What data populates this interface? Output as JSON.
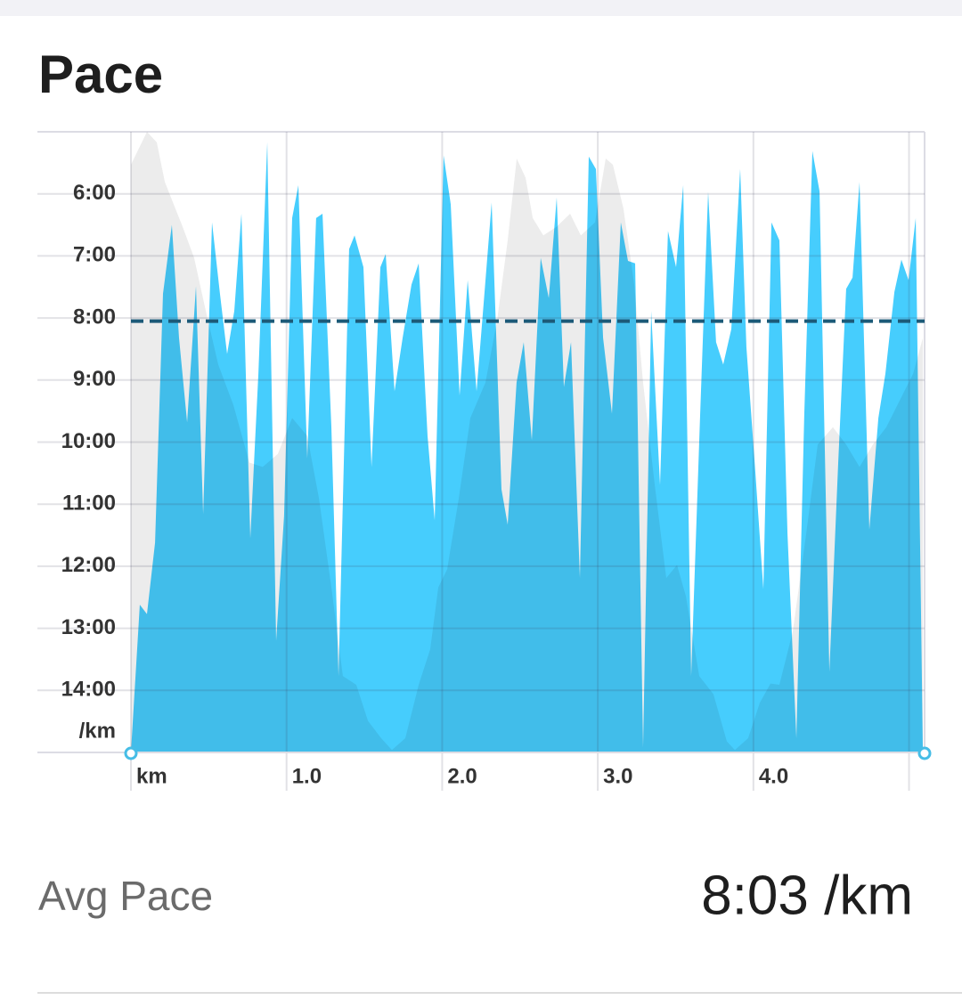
{
  "chart_data": {
    "type": "area",
    "title": "Pace",
    "y_label": "/km",
    "xlim": [
      0,
      5.1
    ],
    "xticks": [
      {
        "value": 0,
        "label": "km"
      },
      {
        "value": 1,
        "label": "1.0"
      },
      {
        "value": 2,
        "label": "2.0"
      },
      {
        "value": 3,
        "label": "3.0"
      },
      {
        "value": 4,
        "label": "4.0"
      },
      {
        "value": 5,
        "label": null
      }
    ],
    "ylim": [
      15,
      5
    ],
    "yticks": [
      {
        "value": 6,
        "label": "6:00"
      },
      {
        "value": 7,
        "label": "7:00"
      },
      {
        "value": 8,
        "label": "8:00"
      },
      {
        "value": 9,
        "label": "9:00"
      },
      {
        "value": 10,
        "label": "10:00"
      },
      {
        "value": 11,
        "label": "11:00"
      },
      {
        "value": 12,
        "label": "12:00"
      },
      {
        "value": 13,
        "label": "13:00"
      },
      {
        "value": 14,
        "label": "14:00"
      }
    ],
    "grid": true,
    "reference_line": {
      "value": 8.05,
      "color": "#1c5a78"
    },
    "series": [
      {
        "color": "#ececec",
        "x": [
          0,
          0.103,
          0.166,
          0.218,
          0.332,
          0.406,
          0.475,
          0.561,
          0.658,
          0.761,
          0.847,
          0.944,
          1.036,
          1.133,
          1.208,
          1.288,
          1.362,
          1.448,
          1.523,
          1.608,
          1.677,
          1.763,
          1.849,
          1.923,
          1.975,
          2.032,
          2.107,
          2.181,
          2.278,
          2.353,
          2.421,
          2.479,
          2.536,
          2.582,
          2.65,
          2.736,
          2.822,
          2.891,
          2.982,
          3.051,
          3.097,
          3.165,
          3.234,
          3.291,
          3.366,
          3.44,
          3.509,
          3.566,
          3.652,
          3.743,
          3.829,
          3.881,
          3.966,
          4.041,
          4.11,
          4.167,
          4.253,
          4.339,
          4.413,
          4.511,
          4.596,
          4.682,
          4.768,
          4.854,
          4.94,
          5.026,
          5.089
        ],
        "values": [
          5.53,
          5.0,
          5.17,
          5.81,
          6.53,
          7.03,
          7.82,
          8.75,
          9.4,
          10.33,
          10.4,
          10.19,
          9.61,
          9.9,
          10.9,
          12.34,
          13.77,
          13.91,
          14.49,
          14.77,
          14.96,
          14.77,
          13.91,
          13.34,
          12.34,
          12.05,
          10.9,
          9.61,
          9.04,
          8.04,
          6.75,
          5.43,
          5.74,
          6.39,
          6.67,
          6.53,
          6.32,
          6.67,
          6.46,
          5.43,
          5.53,
          6.24,
          7.46,
          9.04,
          10.69,
          12.19,
          11.98,
          12.48,
          13.77,
          14.06,
          14.82,
          14.96,
          14.77,
          14.2,
          13.89,
          13.91,
          13.05,
          11.48,
          10.04,
          9.76,
          10.04,
          10.4,
          10.04,
          9.76,
          9.33,
          8.9,
          8.32
        ]
      },
      {
        "color": "#46cdfd",
        "x": [
          0,
          0.057,
          0.103,
          0.155,
          0.206,
          0.263,
          0.309,
          0.361,
          0.418,
          0.464,
          0.521,
          0.572,
          0.618,
          0.664,
          0.71,
          0.767,
          0.819,
          0.876,
          0.933,
          0.984,
          1.036,
          1.076,
          1.133,
          1.19,
          1.231,
          1.288,
          1.334,
          1.402,
          1.437,
          1.494,
          1.546,
          1.603,
          1.637,
          1.694,
          1.746,
          1.803,
          1.849,
          1.906,
          1.952,
          2.009,
          2.055,
          2.112,
          2.164,
          2.221,
          2.267,
          2.318,
          2.381,
          2.421,
          2.478,
          2.524,
          2.576,
          2.633,
          2.685,
          2.736,
          2.782,
          2.828,
          2.885,
          2.942,
          2.988,
          3.034,
          3.091,
          3.148,
          3.194,
          3.24,
          3.291,
          3.343,
          3.4,
          3.451,
          3.503,
          3.549,
          3.6,
          3.657,
          3.709,
          3.76,
          3.806,
          3.858,
          3.915,
          3.955,
          4.012,
          4.064,
          4.116,
          4.167,
          4.219,
          4.276,
          4.327,
          4.379,
          4.425,
          4.488,
          4.545,
          4.596,
          4.637,
          4.682,
          4.745,
          4.803,
          4.848,
          4.906,
          4.951,
          4.997,
          5.043,
          5.089
        ],
        "values": [
          15.0,
          12.62,
          12.77,
          11.62,
          7.61,
          6.5,
          8.32,
          9.68,
          7.49,
          11.16,
          6.46,
          7.61,
          8.58,
          7.89,
          6.32,
          11.55,
          8.9,
          5.17,
          13.2,
          11.19,
          6.39,
          5.86,
          10.26,
          6.39,
          6.32,
          9.76,
          13.77,
          6.89,
          6.67,
          7.18,
          10.4,
          7.18,
          6.97,
          9.18,
          8.32,
          7.46,
          7.12,
          9.9,
          11.26,
          5.38,
          6.17,
          9.25,
          7.39,
          9.18,
          7.75,
          6.14,
          10.76,
          11.33,
          9.04,
          8.39,
          9.97,
          7.03,
          7.68,
          6.06,
          9.11,
          8.39,
          12.19,
          5.4,
          5.6,
          8.32,
          9.54,
          6.46,
          7.08,
          7.12,
          14.92,
          7.89,
          10.69,
          6.6,
          7.18,
          5.86,
          13.77,
          9.61,
          5.97,
          8.39,
          8.75,
          8.18,
          5.6,
          8.47,
          10.47,
          12.37,
          6.46,
          6.75,
          11.48,
          14.77,
          9.54,
          5.31,
          5.96,
          13.7,
          10.33,
          7.53,
          7.35,
          5.81,
          11.41,
          9.61,
          8.9,
          7.58,
          7.06,
          7.39,
          6.39,
          15.0
        ]
      }
    ]
  },
  "summary": {
    "label": "Avg Pace",
    "value": "8:03 /km"
  }
}
